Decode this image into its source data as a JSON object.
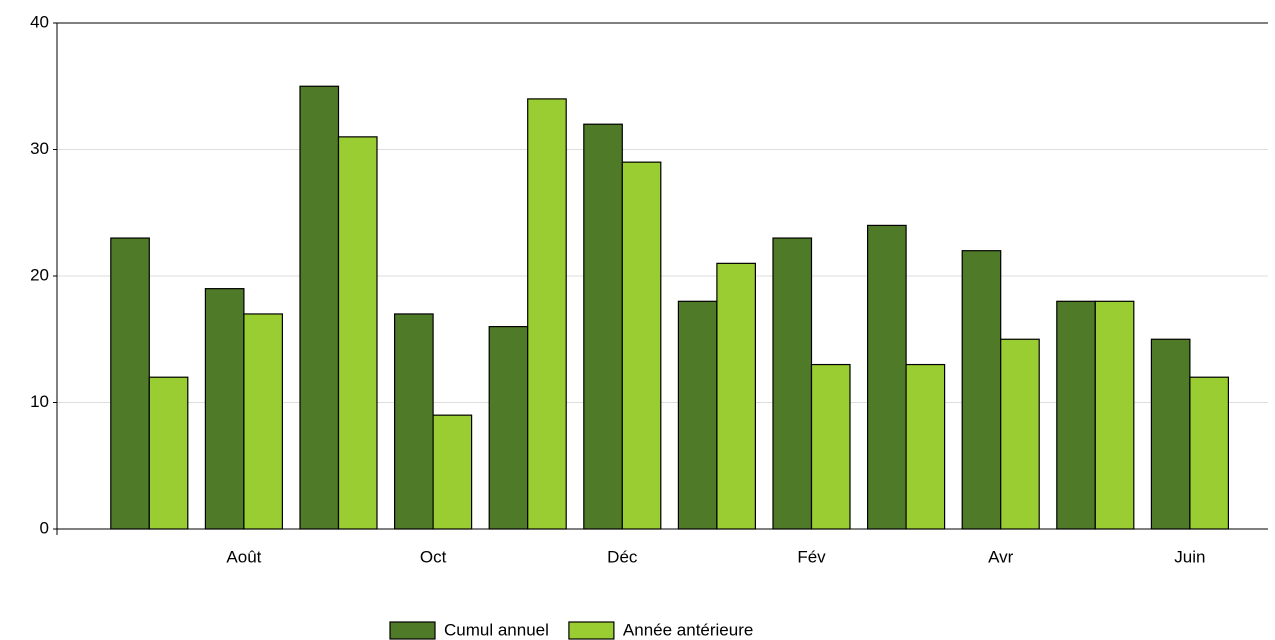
{
  "chart_data": {
    "type": "bar",
    "categories": [
      null,
      "Août",
      null,
      "Oct",
      null,
      "Déc",
      null,
      "Fév",
      null,
      "Avr",
      null,
      "Juin"
    ],
    "series": [
      {
        "name": "Cumul annuel",
        "color": "#4f7a28",
        "values": [
          23,
          19,
          35,
          17,
          16,
          32,
          18,
          23,
          24,
          22,
          18,
          15
        ]
      },
      {
        "name": "Année antérieure",
        "color": "#9acd32",
        "values": [
          12,
          17,
          31,
          9,
          34,
          29,
          21,
          13,
          13,
          15,
          18,
          12
        ]
      }
    ],
    "ylim": [
      0,
      40
    ],
    "yticks": [
      0,
      10,
      20,
      30,
      40
    ],
    "grid": true,
    "legend": "bottom"
  }
}
